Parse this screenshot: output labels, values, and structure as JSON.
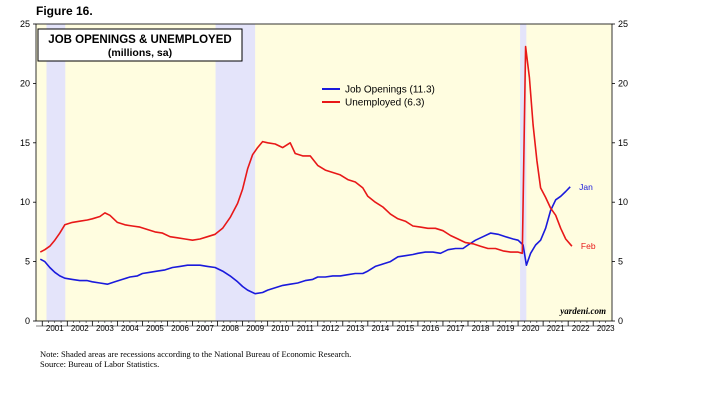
{
  "figure_label": "Figure 16.",
  "notes": [
    "Note: Shaded areas are recessions according to the National Bureau of Economic Research.",
    "Source: Bureau of Labor Statistics."
  ],
  "colors": {
    "plot_background": "#fffde0",
    "recession_shade": "#e4e4fa",
    "job_openings": "#1a1adc",
    "unemployed": "#e81818"
  },
  "chart_data": {
    "type": "line",
    "title": "JOB OPENINGS & UNEMPLOYED",
    "subtitle": "(millions, sa)",
    "xlabel": "",
    "ylabel": "",
    "xlim": [
      2000.75,
      2023.75
    ],
    "ylim": [
      0,
      25
    ],
    "yticks": [
      0,
      5,
      10,
      15,
      20,
      25
    ],
    "xticks": [
      "2001",
      "2002",
      "2003",
      "2004",
      "2005",
      "2006",
      "2007",
      "2008",
      "2009",
      "2010",
      "2011",
      "2012",
      "2013",
      "2014",
      "2015",
      "2016",
      "2017",
      "2018",
      "2019",
      "2020",
      "2021",
      "2022",
      "2023"
    ],
    "grid": false,
    "legend_position": "top-center",
    "recessions": [
      [
        2001.17,
        2001.92
      ],
      [
        2007.92,
        2009.5
      ],
      [
        2020.08,
        2020.33
      ]
    ],
    "watermark": "yardeni.com",
    "series": [
      {
        "name": "Job Openings (11.3)",
        "end_label": "Jan",
        "color": "#1a1adc",
        "points": [
          [
            2000.92,
            5.2
          ],
          [
            2001.1,
            5.0
          ],
          [
            2001.3,
            4.5
          ],
          [
            2001.5,
            4.1
          ],
          [
            2001.7,
            3.8
          ],
          [
            2001.9,
            3.6
          ],
          [
            2002.2,
            3.5
          ],
          [
            2002.5,
            3.4
          ],
          [
            2002.8,
            3.4
          ],
          [
            2003.0,
            3.3
          ],
          [
            2003.3,
            3.2
          ],
          [
            2003.6,
            3.1
          ],
          [
            2003.9,
            3.3
          ],
          [
            2004.2,
            3.5
          ],
          [
            2004.5,
            3.7
          ],
          [
            2004.8,
            3.8
          ],
          [
            2005.0,
            4.0
          ],
          [
            2005.3,
            4.1
          ],
          [
            2005.6,
            4.2
          ],
          [
            2005.9,
            4.3
          ],
          [
            2006.2,
            4.5
          ],
          [
            2006.5,
            4.6
          ],
          [
            2006.8,
            4.7
          ],
          [
            2007.0,
            4.7
          ],
          [
            2007.3,
            4.7
          ],
          [
            2007.6,
            4.6
          ],
          [
            2007.9,
            4.5
          ],
          [
            2008.2,
            4.2
          ],
          [
            2008.5,
            3.8
          ],
          [
            2008.8,
            3.3
          ],
          [
            2009.0,
            2.9
          ],
          [
            2009.2,
            2.6
          ],
          [
            2009.5,
            2.3
          ],
          [
            2009.8,
            2.4
          ],
          [
            2010.0,
            2.6
          ],
          [
            2010.3,
            2.8
          ],
          [
            2010.6,
            3.0
          ],
          [
            2010.9,
            3.1
          ],
          [
            2011.2,
            3.2
          ],
          [
            2011.5,
            3.4
          ],
          [
            2011.8,
            3.5
          ],
          [
            2012.0,
            3.7
          ],
          [
            2012.3,
            3.7
          ],
          [
            2012.6,
            3.8
          ],
          [
            2012.9,
            3.8
          ],
          [
            2013.2,
            3.9
          ],
          [
            2013.5,
            4.0
          ],
          [
            2013.8,
            4.0
          ],
          [
            2014.0,
            4.2
          ],
          [
            2014.3,
            4.6
          ],
          [
            2014.6,
            4.8
          ],
          [
            2014.9,
            5.0
          ],
          [
            2015.2,
            5.4
          ],
          [
            2015.5,
            5.5
          ],
          [
            2015.8,
            5.6
          ],
          [
            2016.0,
            5.7
          ],
          [
            2016.3,
            5.8
          ],
          [
            2016.6,
            5.8
          ],
          [
            2016.9,
            5.7
          ],
          [
            2017.2,
            6.0
          ],
          [
            2017.5,
            6.1
          ],
          [
            2017.8,
            6.1
          ],
          [
            2018.0,
            6.4
          ],
          [
            2018.3,
            6.8
          ],
          [
            2018.6,
            7.1
          ],
          [
            2018.9,
            7.4
          ],
          [
            2019.2,
            7.3
          ],
          [
            2019.5,
            7.1
          ],
          [
            2019.8,
            6.9
          ],
          [
            2020.0,
            6.8
          ],
          [
            2020.2,
            6.4
          ],
          [
            2020.33,
            4.7
          ],
          [
            2020.5,
            5.7
          ],
          [
            2020.7,
            6.4
          ],
          [
            2020.9,
            6.8
          ],
          [
            2021.1,
            7.8
          ],
          [
            2021.3,
            9.3
          ],
          [
            2021.5,
            10.2
          ],
          [
            2021.7,
            10.5
          ],
          [
            2021.9,
            10.9
          ],
          [
            2022.08,
            11.3
          ]
        ]
      },
      {
        "name": "Unemployed (6.3)",
        "end_label": "Feb",
        "color": "#e81818",
        "points": [
          [
            2000.92,
            5.8
          ],
          [
            2001.1,
            6.0
          ],
          [
            2001.3,
            6.3
          ],
          [
            2001.5,
            6.8
          ],
          [
            2001.7,
            7.4
          ],
          [
            2001.9,
            8.1
          ],
          [
            2002.2,
            8.3
          ],
          [
            2002.5,
            8.4
          ],
          [
            2002.8,
            8.5
          ],
          [
            2003.0,
            8.6
          ],
          [
            2003.3,
            8.8
          ],
          [
            2003.5,
            9.1
          ],
          [
            2003.7,
            8.9
          ],
          [
            2004.0,
            8.3
          ],
          [
            2004.3,
            8.1
          ],
          [
            2004.6,
            8.0
          ],
          [
            2004.9,
            7.9
          ],
          [
            2005.2,
            7.7
          ],
          [
            2005.5,
            7.5
          ],
          [
            2005.8,
            7.4
          ],
          [
            2006.1,
            7.1
          ],
          [
            2006.4,
            7.0
          ],
          [
            2006.7,
            6.9
          ],
          [
            2007.0,
            6.8
          ],
          [
            2007.3,
            6.9
          ],
          [
            2007.6,
            7.1
          ],
          [
            2007.9,
            7.3
          ],
          [
            2008.2,
            7.8
          ],
          [
            2008.5,
            8.7
          ],
          [
            2008.8,
            9.9
          ],
          [
            2009.0,
            11.1
          ],
          [
            2009.2,
            12.8
          ],
          [
            2009.4,
            14.0
          ],
          [
            2009.6,
            14.6
          ],
          [
            2009.8,
            15.1
          ],
          [
            2010.0,
            15.0
          ],
          [
            2010.3,
            14.9
          ],
          [
            2010.6,
            14.6
          ],
          [
            2010.9,
            15.0
          ],
          [
            2011.1,
            14.1
          ],
          [
            2011.4,
            13.9
          ],
          [
            2011.7,
            13.9
          ],
          [
            2012.0,
            13.1
          ],
          [
            2012.3,
            12.7
          ],
          [
            2012.6,
            12.5
          ],
          [
            2012.9,
            12.3
          ],
          [
            2013.2,
            11.9
          ],
          [
            2013.5,
            11.7
          ],
          [
            2013.8,
            11.2
          ],
          [
            2014.0,
            10.5
          ],
          [
            2014.3,
            10.0
          ],
          [
            2014.6,
            9.6
          ],
          [
            2014.9,
            9.0
          ],
          [
            2015.2,
            8.6
          ],
          [
            2015.5,
            8.4
          ],
          [
            2015.8,
            8.0
          ],
          [
            2016.1,
            7.9
          ],
          [
            2016.4,
            7.8
          ],
          [
            2016.7,
            7.8
          ],
          [
            2017.0,
            7.6
          ],
          [
            2017.3,
            7.2
          ],
          [
            2017.6,
            6.9
          ],
          [
            2017.9,
            6.6
          ],
          [
            2018.2,
            6.5
          ],
          [
            2018.5,
            6.3
          ],
          [
            2018.8,
            6.1
          ],
          [
            2019.1,
            6.1
          ],
          [
            2019.4,
            5.9
          ],
          [
            2019.7,
            5.8
          ],
          [
            2020.0,
            5.8
          ],
          [
            2020.17,
            5.7
          ],
          [
            2020.3,
            23.1
          ],
          [
            2020.45,
            20.5
          ],
          [
            2020.6,
            16.5
          ],
          [
            2020.75,
            13.5
          ],
          [
            2020.9,
            11.2
          ],
          [
            2021.1,
            10.4
          ],
          [
            2021.3,
            9.5
          ],
          [
            2021.5,
            8.9
          ],
          [
            2021.7,
            7.8
          ],
          [
            2021.9,
            6.9
          ],
          [
            2022.15,
            6.3
          ]
        ]
      }
    ]
  }
}
